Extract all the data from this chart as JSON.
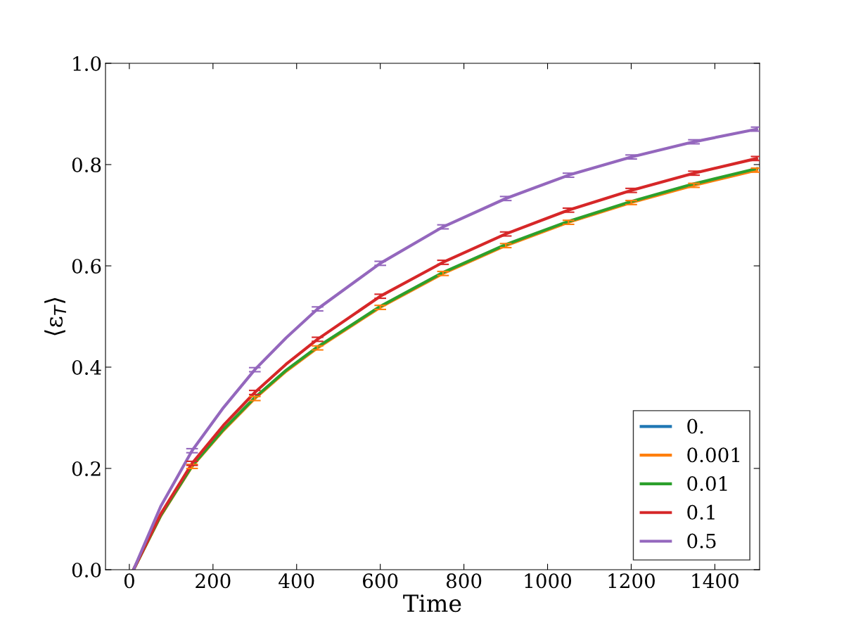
{
  "chart_data": {
    "type": "line",
    "xlabel": "Time",
    "ylabel": "⟨ε$_{T}$⟩",
    "x": [
      10,
      75,
      150,
      225,
      300,
      375,
      450,
      600,
      750,
      900,
      1050,
      1200,
      1350,
      1500
    ],
    "xlim": [
      -57,
      1507
    ],
    "xticks": [
      0,
      200,
      400,
      600,
      800,
      1000,
      1200,
      1400
    ],
    "ylim": [
      0,
      1.0
    ],
    "yticks": [
      {
        "value": 0,
        "label": "0.0"
      },
      0.2,
      0.4,
      0.6,
      0.8,
      {
        "value": 1.0,
        "label": "1.0"
      }
    ],
    "grid": false,
    "legend": "bottom right",
    "marker": "none",
    "line_style": "solid",
    "series": [
      {
        "name": "0.",
        "color": "#1f77b4",
        "values": [
          null,
          null,
          null,
          null,
          null,
          null,
          null,
          null,
          null,
          null,
          null,
          null,
          null,
          null
        ]
      },
      {
        "name": "0.001",
        "color": "#ff7f0e",
        "values": [
          0,
          0.106,
          0.204,
          0.275,
          0.338,
          0.392,
          0.438,
          0.518,
          0.585,
          0.64,
          0.686,
          0.725,
          0.759,
          0.789
        ],
        "errors": [
          null,
          null,
          0.004,
          null,
          0.004,
          null,
          0.004,
          0.004,
          0.004,
          0.004,
          0.004,
          0.004,
          0.004,
          0.004
        ]
      },
      {
        "name": "0.01",
        "color": "#2ca02c",
        "values": [
          0,
          0.107,
          0.205,
          0.277,
          0.34,
          0.394,
          0.44,
          0.52,
          0.587,
          0.642,
          0.688,
          0.727,
          0.762,
          0.792
        ]
      },
      {
        "name": "0.1",
        "color": "#d62728",
        "values": [
          0,
          0.11,
          0.21,
          0.285,
          0.35,
          0.406,
          0.455,
          0.54,
          0.607,
          0.663,
          0.71,
          0.749,
          0.783,
          0.812
        ],
        "errors": [
          null,
          null,
          0.004,
          null,
          0.004,
          null,
          0.004,
          0.004,
          0.004,
          0.004,
          0.004,
          0.004,
          0.004,
          0.004
        ]
      },
      {
        "name": "0.5",
        "color": "#9467bd",
        "values": [
          0,
          0.125,
          0.235,
          0.32,
          0.395,
          0.458,
          0.515,
          0.605,
          0.677,
          0.733,
          0.779,
          0.815,
          0.845,
          0.87
        ],
        "errors": [
          null,
          null,
          0.004,
          null,
          0.004,
          null,
          0.004,
          0.004,
          0.004,
          0.004,
          0.004,
          0.004,
          0.004,
          0.004
        ]
      }
    ]
  }
}
